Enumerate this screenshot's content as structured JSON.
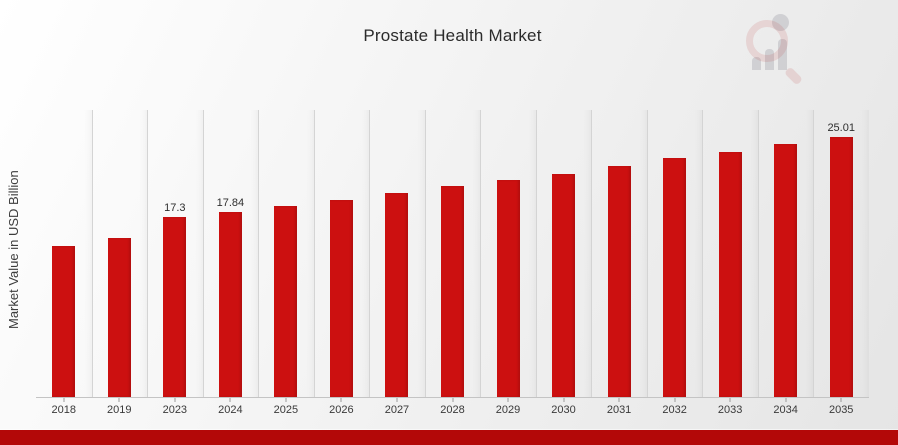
{
  "chart_data": {
    "type": "bar",
    "title": "Prostate Health Market",
    "ylabel": "Market Value in USD Billion",
    "xlabel": "",
    "categories": [
      "2018",
      "2019",
      "2023",
      "2024",
      "2025",
      "2026",
      "2027",
      "2028",
      "2029",
      "2030",
      "2031",
      "2032",
      "2033",
      "2034",
      "2035"
    ],
    "values": [
      14.5,
      15.3,
      17.3,
      17.84,
      18.4,
      19.0,
      19.6,
      20.3,
      20.9,
      21.5,
      22.2,
      23.0,
      23.6,
      24.3,
      25.01
    ],
    "bar_labels": [
      "",
      "",
      "17.3",
      "17.84",
      "",
      "",
      "",
      "",
      "",
      "",
      "",
      "",
      "",
      "",
      "25.01"
    ],
    "ylim": [
      0,
      27.7
    ],
    "grid": "vertical-column-separators",
    "legend": "none",
    "bar_color": "#cc1010",
    "banner_color": "#b30808"
  },
  "watermark": {
    "name": "magnifier-bar-chart-logo"
  }
}
